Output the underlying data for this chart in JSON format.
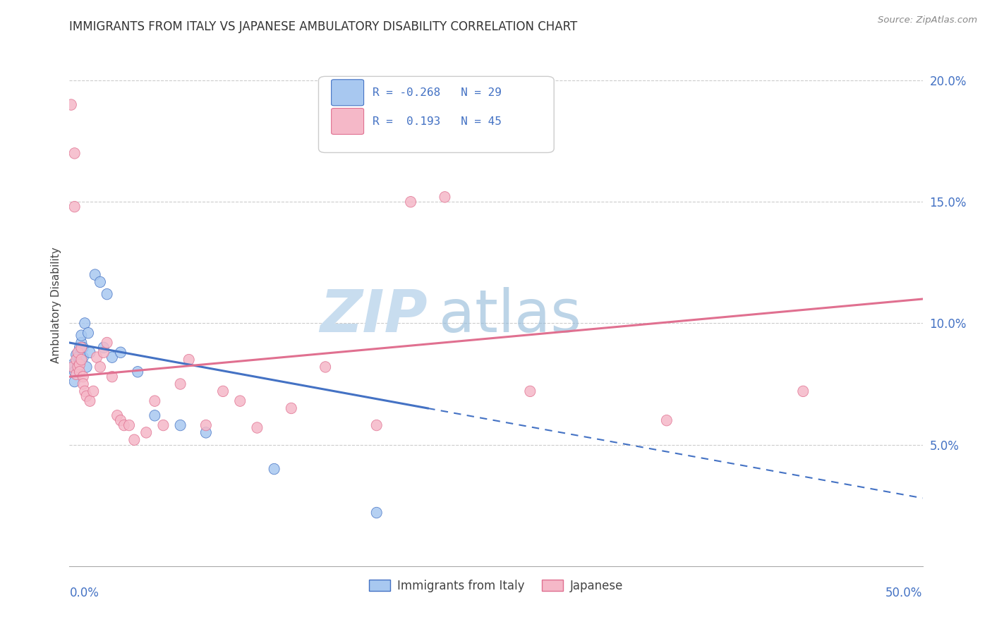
{
  "title": "IMMIGRANTS FROM ITALY VS JAPANESE AMBULATORY DISABILITY CORRELATION CHART",
  "source": "Source: ZipAtlas.com",
  "ylabel": "Ambulatory Disability",
  "xlim": [
    0.0,
    0.5
  ],
  "ylim": [
    0.0,
    0.215
  ],
  "yticks": [
    0.0,
    0.05,
    0.1,
    0.15,
    0.2
  ],
  "ytick_labels": [
    "",
    "5.0%",
    "10.0%",
    "15.0%",
    "20.0%"
  ],
  "legend_r_italy": "-0.268",
  "legend_n_italy": "29",
  "legend_r_japanese": "0.193",
  "legend_n_japanese": "45",
  "color_italy": "#A8C8F0",
  "color_japanese": "#F5B8C8",
  "color_italy_line": "#4472C4",
  "color_japanese_line": "#E07090",
  "italy_x": [
    0.001,
    0.002,
    0.003,
    0.003,
    0.004,
    0.005,
    0.005,
    0.006,
    0.006,
    0.007,
    0.007,
    0.008,
    0.008,
    0.009,
    0.01,
    0.011,
    0.012,
    0.015,
    0.018,
    0.02,
    0.022,
    0.025,
    0.03,
    0.04,
    0.05,
    0.065,
    0.08,
    0.12,
    0.18
  ],
  "italy_y": [
    0.082,
    0.083,
    0.08,
    0.076,
    0.087,
    0.082,
    0.086,
    0.09,
    0.085,
    0.092,
    0.095,
    0.09,
    0.086,
    0.1,
    0.082,
    0.096,
    0.088,
    0.12,
    0.117,
    0.09,
    0.112,
    0.086,
    0.088,
    0.08,
    0.062,
    0.058,
    0.055,
    0.04,
    0.022
  ],
  "japanese_x": [
    0.001,
    0.002,
    0.003,
    0.003,
    0.004,
    0.004,
    0.005,
    0.005,
    0.006,
    0.006,
    0.007,
    0.007,
    0.008,
    0.008,
    0.009,
    0.01,
    0.012,
    0.014,
    0.016,
    0.018,
    0.02,
    0.022,
    0.025,
    0.028,
    0.03,
    0.032,
    0.035,
    0.038,
    0.045,
    0.05,
    0.055,
    0.065,
    0.07,
    0.08,
    0.09,
    0.1,
    0.11,
    0.13,
    0.15,
    0.18,
    0.2,
    0.22,
    0.27,
    0.35,
    0.43
  ],
  "japanese_y": [
    0.19,
    0.082,
    0.17,
    0.148,
    0.085,
    0.079,
    0.082,
    0.088,
    0.083,
    0.08,
    0.085,
    0.09,
    0.078,
    0.075,
    0.072,
    0.07,
    0.068,
    0.072,
    0.086,
    0.082,
    0.088,
    0.092,
    0.078,
    0.062,
    0.06,
    0.058,
    0.058,
    0.052,
    0.055,
    0.068,
    0.058,
    0.075,
    0.085,
    0.058,
    0.072,
    0.068,
    0.057,
    0.065,
    0.082,
    0.058,
    0.15,
    0.152,
    0.072,
    0.06,
    0.072
  ],
  "italy_line_x0": 0.0,
  "italy_line_x1": 0.21,
  "italy_line_xdash1": 0.5,
  "italy_line_y_at_0": 0.092,
  "italy_line_y_at_021": 0.065,
  "italy_line_y_at_050": 0.028,
  "japanese_line_x0": 0.0,
  "japanese_line_x1": 0.5,
  "japanese_line_y_at_0": 0.078,
  "japanese_line_y_at_050": 0.11
}
